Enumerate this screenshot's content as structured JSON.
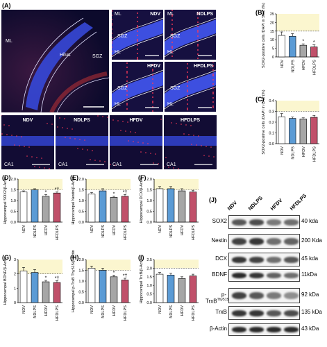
{
  "panels": {
    "A": "(A)",
    "B": "(B)",
    "C": "(C)",
    "D": "(D)",
    "E": "(E)",
    "F": "(F)",
    "G": "(G)",
    "H": "(H)",
    "I": "(I)",
    "J": "(J)"
  },
  "microscopy": {
    "main": {
      "ml": "ML",
      "hilus": "Hilus",
      "sgz": "SGZ"
    },
    "tiles": [
      {
        "name": "NDV",
        "ml": "ML",
        "sgz": "SGZ",
        "hl": "HL"
      },
      {
        "name": "NDLPS",
        "ml": "ML",
        "sgz": "SGZ",
        "hl": "HL"
      },
      {
        "name": "HFDV",
        "ml": "",
        "sgz": "SGZ",
        "hl": "HL"
      },
      {
        "name": "HFDLPS",
        "ml": "",
        "sgz": "SGZ",
        "hl": "HL"
      }
    ],
    "ca1": [
      {
        "name": "NDV",
        "region": "CA1"
      },
      {
        "name": "NDLPS",
        "region": "CA1"
      },
      {
        "name": "HFDV",
        "region": "CA1"
      },
      {
        "name": "HFDLPS",
        "region": "CA1"
      }
    ]
  },
  "colors": {
    "NDV": "#ffffff",
    "NDLPS": "#5b9bd5",
    "HFDV": "#a6a6a6",
    "HFDLPS": "#c0506a",
    "highlight": "#fbf6cf"
  },
  "chart_data": [
    {
      "id": "B",
      "type": "bar",
      "categories": [
        "NDV",
        "NDLPS",
        "HFDV",
        "HFDLPS"
      ],
      "values": [
        12.5,
        12.0,
        6.8,
        5.8
      ],
      "errors": [
        2.0,
        1.5,
        0.8,
        1.2
      ],
      "ylabel": "SOX2-positive cells /DAPI in SGZ (%)",
      "ylim": [
        0,
        25
      ],
      "yticks": [
        0,
        5,
        10,
        15,
        20,
        25
      ],
      "yticklabels": [
        "0",
        "5",
        "10",
        "15",
        "20",
        "25"
      ],
      "refline": 15,
      "marks": [
        "",
        "",
        "*",
        "*"
      ]
    },
    {
      "id": "C",
      "type": "bar",
      "categories": [
        "NDV",
        "NDLPS",
        "HFDV",
        "HFDLPS"
      ],
      "values": [
        0.25,
        0.235,
        0.23,
        0.245
      ],
      "errors": [
        0.03,
        0.012,
        0.01,
        0.018
      ],
      "ylabel": "SOX2-positive cells /DAPI in CA1 (%)",
      "ylim": [
        0,
        0.4
      ],
      "yticks": [
        0,
        0.1,
        0.2,
        0.3,
        0.4
      ],
      "yticklabels": [
        "0.0",
        "0.1",
        "0.2",
        "0.3",
        "0.4"
      ],
      "refline": 0.3,
      "marks": [
        "",
        "",
        "",
        ""
      ]
    },
    {
      "id": "D",
      "type": "bar",
      "categories": [
        "NDV",
        "NDLPS",
        "HFDV",
        "HFDLPS"
      ],
      "values": [
        1.4,
        1.5,
        1.2,
        1.35
      ],
      "errors": [
        0.05,
        0.05,
        0.08,
        0.05
      ],
      "ylabel": "Hippocampal SOX2/β-Actin",
      "ylim": [
        0,
        2.0
      ],
      "yticks": [
        0,
        0.5,
        1.0,
        1.5,
        2.0
      ],
      "yticklabels": [
        "0.0",
        "0.5",
        "1.0",
        "1.5",
        "2.0"
      ],
      "refline": 1.5,
      "marks": [
        "",
        "",
        "*",
        "*†"
      ]
    },
    {
      "id": "E",
      "type": "bar",
      "categories": [
        "NDV",
        "NDLPS",
        "HFDV",
        "HFDLPS"
      ],
      "values": [
        1.3,
        1.45,
        1.15,
        1.2
      ],
      "errors": [
        0.08,
        0.1,
        0.05,
        0.08
      ],
      "ylabel": "Hippocampal Nestin/β-Actin",
      "ylim": [
        0,
        2.0
      ],
      "yticks": [
        0,
        0.5,
        1.0,
        1.5,
        2.0
      ],
      "yticklabels": [
        "0.0",
        "0.5",
        "1.0",
        "1.5",
        "2.0"
      ],
      "refline": 1.5,
      "marks": [
        "",
        "",
        "*",
        "*†"
      ]
    },
    {
      "id": "F",
      "type": "bar",
      "categories": [
        "NDV",
        "NDLPS",
        "HFDV",
        "HFDLPS"
      ],
      "values": [
        1.55,
        1.55,
        1.45,
        1.4
      ],
      "errors": [
        0.1,
        0.1,
        0.1,
        0.08
      ],
      "ylabel": "Hippocampal DCX/β-Actin",
      "ylim": [
        0,
        2.0
      ],
      "yticks": [
        0,
        0.5,
        1.0,
        1.5,
        2.0
      ],
      "yticklabels": [
        "0.0",
        "0.5",
        "1.0",
        "1.5",
        "2.0"
      ],
      "refline": 1.5,
      "marks": [
        "",
        "",
        "",
        ""
      ]
    },
    {
      "id": "G",
      "type": "bar",
      "categories": [
        "NDV",
        "NDLPS",
        "HFDV",
        "HFDLPS"
      ],
      "values": [
        2.2,
        2.1,
        1.45,
        1.4
      ],
      "errors": [
        0.25,
        0.2,
        0.1,
        0.12
      ],
      "ylabel": "Hippocampal BDNF/β-Actin",
      "ylim": [
        0,
        3
      ],
      "yticks": [
        0,
        1,
        2,
        3
      ],
      "yticklabels": [
        "0",
        "1",
        "2",
        "3"
      ],
      "refline": 2,
      "marks": [
        "",
        "",
        "*",
        "*†"
      ]
    },
    {
      "id": "H",
      "type": "bar",
      "categories": [
        "NDV",
        "NDLPS",
        "HFDV",
        "HFDLPS"
      ],
      "values": [
        1.6,
        1.5,
        1.2,
        1.05
      ],
      "errors": [
        0.1,
        0.1,
        0.08,
        0.08
      ],
      "ylabel": "Hippocampal p-TrxB Thy515/β-Actin",
      "ylim": [
        0,
        2.0
      ],
      "yticks": [
        0,
        0.5,
        1.0,
        1.5,
        2.0
      ],
      "yticklabels": [
        "0.0",
        "0.5",
        "1.0",
        "1.5",
        "2.0"
      ],
      "refline": 1.5,
      "marks": [
        "",
        "",
        "*",
        "*†"
      ]
    },
    {
      "id": "I",
      "type": "bar",
      "categories": [
        "NDV",
        "NDLPS",
        "HFDV",
        "HFDLPS"
      ],
      "values": [
        1.65,
        1.6,
        1.4,
        1.55
      ],
      "errors": [
        0.1,
        0.1,
        0.1,
        0.1
      ],
      "ylabel": "Hippocampal TrxB/β-Actin",
      "ylim": [
        0,
        2.5
      ],
      "yticks": [
        0,
        0.5,
        1.0,
        1.5,
        2.0,
        2.5
      ],
      "yticklabels": [
        "0.0",
        "0.5",
        "1.0",
        "1.5",
        "2.0",
        "2.5"
      ],
      "refline": 2.0,
      "marks": [
        "",
        "",
        "",
        ""
      ]
    }
  ],
  "western_blot": {
    "groups": [
      "NDV",
      "NDLPS",
      "HFDV",
      "HFDLPS"
    ],
    "rows": [
      {
        "label": "SOX2",
        "kda": "40 kda"
      },
      {
        "label": "Nestin",
        "kda": "200 Kda"
      },
      {
        "label": "DCX",
        "kda": "45 kda"
      },
      {
        "label": "BDNF",
        "kda": "11kDa"
      },
      {
        "label": "p-TrxB",
        "sup": "Thy515",
        "kda": "92 kDa"
      },
      {
        "label": "TrxB",
        "kda": "135 kDa"
      },
      {
        "label": "β-Actin",
        "kda": "43 kDa"
      }
    ]
  }
}
